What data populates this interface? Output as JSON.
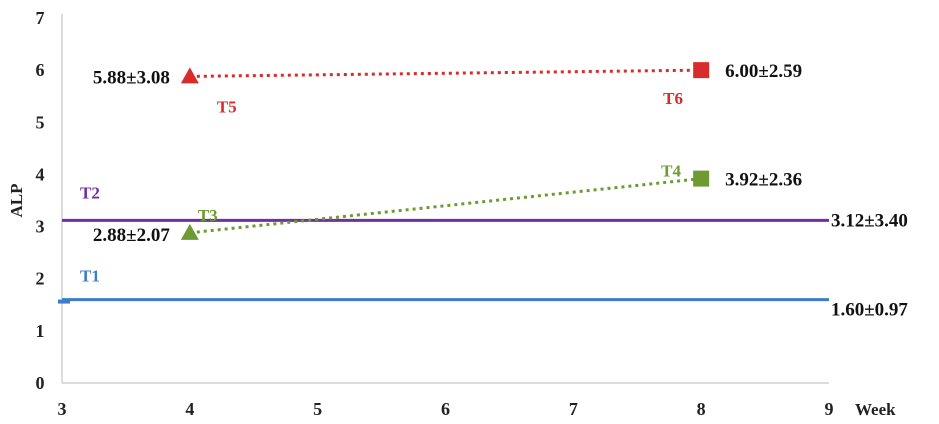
{
  "chart_data": {
    "type": "line",
    "xlabel": "Week",
    "ylabel": "ALP",
    "xlim": [
      3,
      9
    ],
    "ylim": [
      0,
      7
    ],
    "x_ticks": [
      "3",
      "4",
      "5",
      "6",
      "7",
      "8",
      "9"
    ],
    "y_ticks": [
      "0",
      "1",
      "2",
      "3",
      "4",
      "5",
      "6",
      "7"
    ],
    "grid": false,
    "colors": {
      "T1": "#3d7cc9",
      "T2": "#7030a0",
      "T3T4": "#6e9a33",
      "T5T6": "#d92b2b",
      "text": "#111111"
    },
    "reference_lines": [
      {
        "name": "T1",
        "y": 1.6,
        "label": "1.60±0.97",
        "style": "solid",
        "color": "#3d7cc9"
      },
      {
        "name": "T2",
        "y": 3.12,
        "label": "3.12±3.40",
        "style": "solid",
        "color": "#7030a0"
      }
    ],
    "series": [
      {
        "color": "#6e9a33",
        "style": "dotted",
        "points": [
          {
            "name": "T3",
            "x": 4,
            "y": 2.88,
            "label": "2.88±2.07",
            "marker": "triangle"
          },
          {
            "name": "T4",
            "x": 8,
            "y": 3.92,
            "label": "3.92±2.36",
            "marker": "square"
          }
        ]
      },
      {
        "color": "#d92b2b",
        "style": "dotted",
        "points": [
          {
            "name": "T5",
            "x": 4,
            "y": 5.88,
            "label": "5.88±3.08",
            "marker": "triangle"
          },
          {
            "name": "T6",
            "x": 8,
            "y": 6.0,
            "label": "6.00±2.59",
            "marker": "square"
          }
        ]
      }
    ]
  }
}
